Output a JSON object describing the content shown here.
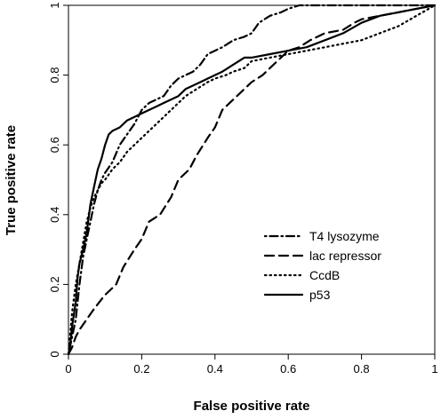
{
  "chart_data": {
    "type": "line",
    "xlabel": "False positive rate",
    "ylabel": "True positive rate",
    "xlim": [
      0,
      1
    ],
    "ylim": [
      0,
      1
    ],
    "x_ticks": [
      "0",
      "0.2",
      "0.4",
      "0.6",
      "0.8",
      "1"
    ],
    "y_ticks": [
      "0",
      "0.2",
      "0.4",
      "0.6",
      "0.8",
      "1"
    ],
    "grid": false,
    "legend_position": "lower-right",
    "series": [
      {
        "name": "T4 lysozyme",
        "dash": "dotdash",
        "x": [
          0,
          0.01,
          0.02,
          0.03,
          0.04,
          0.05,
          0.06,
          0.07,
          0.08,
          0.09,
          0.1,
          0.12,
          0.14,
          0.16,
          0.18,
          0.2,
          0.22,
          0.24,
          0.26,
          0.28,
          0.3,
          0.32,
          0.34,
          0.36,
          0.38,
          0.4,
          0.42,
          0.45,
          0.48,
          0.5,
          0.52,
          0.55,
          0.58,
          0.6,
          0.63,
          0.65,
          0.7,
          0.75,
          0.8,
          0.85,
          0.9,
          0.95,
          1
        ],
        "y": [
          0,
          0.05,
          0.1,
          0.2,
          0.28,
          0.33,
          0.38,
          0.43,
          0.47,
          0.5,
          0.52,
          0.55,
          0.6,
          0.63,
          0.66,
          0.7,
          0.72,
          0.73,
          0.74,
          0.77,
          0.79,
          0.8,
          0.81,
          0.83,
          0.86,
          0.87,
          0.88,
          0.9,
          0.91,
          0.92,
          0.95,
          0.97,
          0.98,
          0.99,
          1,
          1,
          1,
          1,
          1,
          1,
          1,
          1,
          1
        ]
      },
      {
        "name": "lac repressor",
        "dash": "dashed",
        "x": [
          0,
          0.01,
          0.02,
          0.03,
          0.05,
          0.07,
          0.1,
          0.13,
          0.15,
          0.18,
          0.2,
          0.22,
          0.25,
          0.28,
          0.3,
          0.33,
          0.35,
          0.38,
          0.4,
          0.42,
          0.45,
          0.48,
          0.5,
          0.53,
          0.55,
          0.58,
          0.6,
          0.63,
          0.66,
          0.7,
          0.75,
          0.78,
          0.8,
          0.85,
          0.9,
          0.95,
          1
        ],
        "y": [
          0,
          0.02,
          0.05,
          0.07,
          0.1,
          0.13,
          0.17,
          0.2,
          0.25,
          0.3,
          0.33,
          0.38,
          0.4,
          0.45,
          0.5,
          0.53,
          0.57,
          0.62,
          0.65,
          0.7,
          0.73,
          0.76,
          0.78,
          0.8,
          0.82,
          0.85,
          0.87,
          0.88,
          0.9,
          0.92,
          0.93,
          0.95,
          0.96,
          0.97,
          0.98,
          0.99,
          1
        ]
      },
      {
        "name": "CcdB",
        "dash": "dotted",
        "x": [
          0,
          0.01,
          0.02,
          0.03,
          0.04,
          0.05,
          0.06,
          0.07,
          0.08,
          0.09,
          0.1,
          0.12,
          0.14,
          0.16,
          0.18,
          0.2,
          0.22,
          0.25,
          0.28,
          0.3,
          0.32,
          0.35,
          0.38,
          0.4,
          0.43,
          0.45,
          0.48,
          0.5,
          0.55,
          0.6,
          0.65,
          0.7,
          0.75,
          0.8,
          0.85,
          0.9,
          0.95,
          1
        ],
        "y": [
          0,
          0.12,
          0.2,
          0.26,
          0.32,
          0.38,
          0.42,
          0.45,
          0.47,
          0.49,
          0.5,
          0.53,
          0.55,
          0.58,
          0.6,
          0.62,
          0.64,
          0.67,
          0.7,
          0.72,
          0.74,
          0.76,
          0.78,
          0.79,
          0.8,
          0.81,
          0.82,
          0.84,
          0.85,
          0.86,
          0.87,
          0.88,
          0.89,
          0.9,
          0.92,
          0.94,
          0.97,
          1
        ]
      },
      {
        "name": "p53",
        "dash": "solid",
        "x": [
          0,
          0.005,
          0.01,
          0.02,
          0.025,
          0.03,
          0.04,
          0.05,
          0.06,
          0.07,
          0.08,
          0.09,
          0.1,
          0.11,
          0.12,
          0.14,
          0.16,
          0.18,
          0.2,
          0.22,
          0.24,
          0.26,
          0.28,
          0.3,
          0.32,
          0.34,
          0.36,
          0.38,
          0.4,
          0.42,
          0.45,
          0.48,
          0.5,
          0.55,
          0.6,
          0.65,
          0.7,
          0.75,
          0.8,
          0.85,
          0.9,
          0.95,
          1
        ],
        "y": [
          0,
          0.03,
          0.08,
          0.15,
          0.22,
          0.26,
          0.3,
          0.35,
          0.43,
          0.48,
          0.53,
          0.56,
          0.6,
          0.63,
          0.64,
          0.65,
          0.67,
          0.68,
          0.69,
          0.7,
          0.71,
          0.72,
          0.73,
          0.74,
          0.76,
          0.77,
          0.78,
          0.79,
          0.8,
          0.81,
          0.83,
          0.85,
          0.85,
          0.86,
          0.87,
          0.88,
          0.9,
          0.92,
          0.95,
          0.97,
          0.98,
          0.99,
          1
        ]
      }
    ]
  }
}
